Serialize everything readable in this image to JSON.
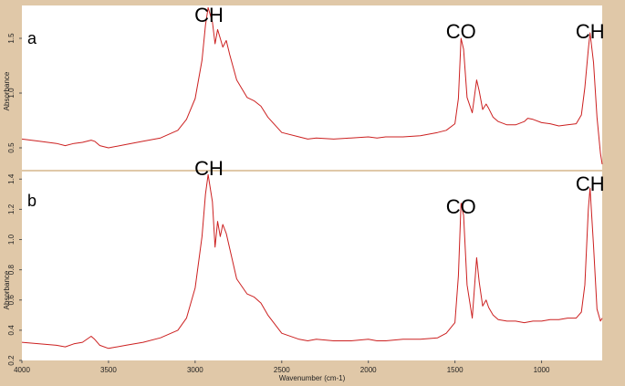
{
  "colors": {
    "frame": "#e0c8a8",
    "line": "#cc2020",
    "plot_bg": "#ffffff"
  },
  "chart_data": [
    {
      "panel": "a",
      "type": "line",
      "xlabel": "",
      "ylabel": "Absorbance",
      "xlim": [
        4000,
        650
      ],
      "ylim": [
        0.3,
        1.8
      ],
      "yticks": [
        0.5,
        1.0,
        1.5
      ],
      "ytick_labels": [
        "0.5",
        "1.0",
        "1.5"
      ],
      "grid": false,
      "series": [
        {
          "x": [
            4000,
            3900,
            3800,
            3750,
            3700,
            3650,
            3600,
            3580,
            3550,
            3500,
            3400,
            3300,
            3200,
            3100,
            3050,
            3000,
            2960,
            2940,
            2925,
            2900,
            2885,
            2870,
            2855,
            2840,
            2820,
            2800,
            2760,
            2700,
            2660,
            2620,
            2580,
            2500,
            2400,
            2350,
            2300,
            2200,
            2100,
            2000,
            1950,
            1900,
            1800,
            1700,
            1600,
            1550,
            1500,
            1480,
            1465,
            1450,
            1430,
            1400,
            1375,
            1360,
            1340,
            1320,
            1305,
            1280,
            1250,
            1200,
            1150,
            1100,
            1080,
            1050,
            1000,
            950,
            900,
            850,
            800,
            770,
            750,
            730,
            720,
            700,
            680,
            660,
            650
          ],
          "y": [
            0.58,
            0.56,
            0.54,
            0.52,
            0.54,
            0.55,
            0.57,
            0.56,
            0.52,
            0.5,
            0.53,
            0.56,
            0.59,
            0.66,
            0.76,
            0.95,
            1.3,
            1.62,
            1.78,
            1.65,
            1.45,
            1.58,
            1.5,
            1.42,
            1.48,
            1.35,
            1.12,
            0.96,
            0.93,
            0.88,
            0.78,
            0.64,
            0.6,
            0.58,
            0.59,
            0.58,
            0.59,
            0.6,
            0.59,
            0.6,
            0.6,
            0.61,
            0.64,
            0.66,
            0.72,
            0.95,
            1.5,
            1.4,
            0.96,
            0.82,
            1.12,
            1.02,
            0.85,
            0.9,
            0.86,
            0.78,
            0.74,
            0.71,
            0.71,
            0.74,
            0.77,
            0.76,
            0.73,
            0.72,
            0.7,
            0.71,
            0.72,
            0.8,
            1.05,
            1.4,
            1.55,
            1.28,
            0.78,
            0.45,
            0.35
          ]
        }
      ],
      "annotations": [
        {
          "text": "CH",
          "x": 2920
        },
        {
          "text": "CO",
          "x": 1465
        },
        {
          "text": "CH",
          "x": 720
        }
      ]
    },
    {
      "panel": "b",
      "type": "line",
      "xlabel": "Wavenumber (cm-1)",
      "ylabel": "Absorbance",
      "xlim": [
        4000,
        650
      ],
      "ylim": [
        0.2,
        1.45
      ],
      "yticks": [
        0.2,
        0.4,
        0.6,
        0.8,
        1.0,
        1.2,
        1.4
      ],
      "ytick_labels": [
        "0.2",
        "0.4",
        "0.6",
        "0.8",
        "1.0",
        "1.2",
        "1.4"
      ],
      "xticks": [
        4000,
        3500,
        3000,
        2500,
        2000,
        1500,
        1000
      ],
      "xtick_labels": [
        "4000",
        "3500",
        "3000",
        "2500",
        "2000",
        "1500",
        "1000"
      ],
      "grid": false,
      "series": [
        {
          "x": [
            4000,
            3900,
            3800,
            3750,
            3700,
            3650,
            3600,
            3580,
            3550,
            3500,
            3400,
            3300,
            3200,
            3100,
            3050,
            3000,
            2960,
            2940,
            2925,
            2900,
            2885,
            2870,
            2855,
            2840,
            2820,
            2800,
            2760,
            2700,
            2660,
            2620,
            2580,
            2500,
            2400,
            2350,
            2300,
            2200,
            2100,
            2000,
            1950,
            1900,
            1800,
            1700,
            1600,
            1550,
            1500,
            1480,
            1465,
            1450,
            1430,
            1400,
            1375,
            1360,
            1340,
            1320,
            1305,
            1280,
            1250,
            1200,
            1150,
            1100,
            1050,
            1000,
            950,
            900,
            850,
            800,
            770,
            750,
            730,
            720,
            700,
            680,
            660,
            650
          ],
          "y": [
            0.32,
            0.31,
            0.3,
            0.29,
            0.31,
            0.32,
            0.36,
            0.34,
            0.3,
            0.28,
            0.3,
            0.32,
            0.35,
            0.4,
            0.48,
            0.68,
            1.02,
            1.3,
            1.43,
            1.25,
            0.95,
            1.12,
            1.02,
            1.1,
            1.04,
            0.94,
            0.74,
            0.64,
            0.62,
            0.58,
            0.5,
            0.38,
            0.34,
            0.33,
            0.34,
            0.33,
            0.33,
            0.34,
            0.33,
            0.33,
            0.34,
            0.34,
            0.35,
            0.38,
            0.45,
            0.76,
            1.24,
            1.16,
            0.7,
            0.48,
            0.88,
            0.72,
            0.56,
            0.6,
            0.55,
            0.5,
            0.47,
            0.46,
            0.46,
            0.45,
            0.46,
            0.46,
            0.47,
            0.47,
            0.48,
            0.48,
            0.52,
            0.7,
            1.2,
            1.34,
            0.96,
            0.54,
            0.46,
            0.48
          ]
        }
      ],
      "annotations": [
        {
          "text": "CH",
          "x": 2920
        },
        {
          "text": "CO",
          "x": 1465
        },
        {
          "text": "CH",
          "x": 720
        }
      ]
    }
  ]
}
